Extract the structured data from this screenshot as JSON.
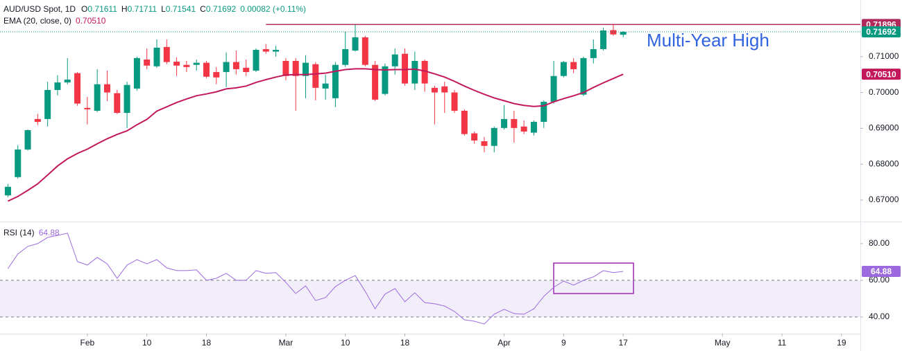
{
  "chart_data": [
    {
      "type": "candlestick",
      "title": "AUD/USD Spot, 1D",
      "ohlc_names": [
        "O",
        "H",
        "L",
        "C"
      ],
      "change": "0.00082 (+0.11%)",
      "xlim": [
        -0.8,
        85.9
      ],
      "xticks": [
        {
          "value": 8,
          "label": "Feb"
        },
        {
          "value": 14,
          "label": "10"
        },
        {
          "value": 20,
          "label": "18"
        },
        {
          "value": 28,
          "label": "Mar"
        },
        {
          "value": 34,
          "label": "10"
        },
        {
          "value": 40,
          "label": "18"
        },
        {
          "value": 50,
          "label": "Apr"
        },
        {
          "value": 56,
          "label": "9"
        },
        {
          "value": 62,
          "label": "17"
        },
        {
          "value": 72,
          "label": "May"
        },
        {
          "value": 78,
          "label": "11"
        },
        {
          "value": 84,
          "label": "19"
        }
      ],
      "ylim": [
        0.664,
        0.7258
      ],
      "yticks": [
        {
          "value": 0.67,
          "label": "0.67000"
        },
        {
          "value": 0.68,
          "label": "0.68000"
        },
        {
          "value": 0.69,
          "label": "0.69000"
        },
        {
          "value": 0.7,
          "label": "0.70000"
        },
        {
          "value": 0.71,
          "label": "0.71000"
        }
      ],
      "up_color": "#089981",
      "down_color": "#f23645",
      "open": [
        0.6713,
        0.6764,
        0.6841,
        0.6926,
        0.6926,
        0.7007,
        0.7028,
        0.7054,
        0.6957,
        0.6949,
        0.7023,
        0.6998,
        0.6943,
        0.7011,
        0.7092,
        0.7073,
        0.7127,
        0.7086,
        0.7077,
        0.7077,
        0.7083,
        0.7057,
        0.7057,
        0.7085,
        0.7069,
        0.7061,
        0.7121,
        0.7114,
        0.7088,
        0.7088,
        0.7046,
        0.7079,
        0.7011,
        0.6984,
        0.7077,
        0.7117,
        0.7154,
        0.7077,
        0.6996,
        0.7073,
        0.7108,
        0.7025,
        0.7088,
        0.7013,
        0.7017,
        0.7,
        0.6949,
        0.6886,
        0.6864,
        0.6851,
        0.6901,
        0.6926,
        0.6905,
        0.6888,
        0.6918,
        0.6974,
        0.7046,
        0.7085,
        0.6994,
        0.7096,
        0.7121,
        0.7174,
        0.71611
      ],
      "high": [
        0.6745,
        0.6853,
        0.6897,
        0.694,
        0.703,
        0.7048,
        0.7096,
        0.7057,
        0.6988,
        0.7065,
        0.7061,
        0.7007,
        0.703,
        0.71,
        0.7123,
        0.7148,
        0.7148,
        0.7098,
        0.7088,
        0.7092,
        0.7088,
        0.7071,
        0.7112,
        0.7117,
        0.7092,
        0.7123,
        0.7135,
        0.713,
        0.7096,
        0.7096,
        0.7104,
        0.7085,
        0.705,
        0.7085,
        0.717,
        0.7189,
        0.7158,
        0.7088,
        0.7081,
        0.7123,
        0.7123,
        0.7114,
        0.7092,
        0.7019,
        0.703,
        0.7007,
        0.6953,
        0.6891,
        0.6876,
        0.6905,
        0.6965,
        0.6949,
        0.6922,
        0.6922,
        0.6978,
        0.7088,
        0.7088,
        0.7096,
        0.71,
        0.7148,
        0.7181,
        0.71896,
        0.71711
      ],
      "low": [
        0.6708,
        0.676,
        0.6838,
        0.6909,
        0.6905,
        0.6992,
        0.7023,
        0.6963,
        0.6911,
        0.6945,
        0.6976,
        0.694,
        0.6901,
        0.7005,
        0.7065,
        0.7069,
        0.7079,
        0.7046,
        0.7057,
        0.7061,
        0.704,
        0.7023,
        0.7015,
        0.705,
        0.7046,
        0.7057,
        0.7108,
        0.71,
        0.7034,
        0.6949,
        0.6984,
        0.6978,
        0.698,
        0.6959,
        0.7071,
        0.7114,
        0.7073,
        0.6976,
        0.6992,
        0.705,
        0.7019,
        0.7007,
        0.7002,
        0.6911,
        0.6943,
        0.6943,
        0.688,
        0.6857,
        0.6833,
        0.6833,
        0.6897,
        0.686,
        0.6884,
        0.688,
        0.6901,
        0.6969,
        0.7042,
        0.7054,
        0.699,
        0.7081,
        0.7117,
        0.7158,
        0.71541
      ],
      "close": [
        0.6737,
        0.6841,
        0.6895,
        0.6918,
        0.7007,
        0.7028,
        0.7036,
        0.6969,
        0.6953,
        0.7023,
        0.7,
        0.6943,
        0.7021,
        0.7096,
        0.7075,
        0.7125,
        0.7085,
        0.7075,
        0.7071,
        0.7083,
        0.7044,
        0.7042,
        0.7085,
        0.7065,
        0.7057,
        0.7119,
        0.7114,
        0.7119,
        0.7046,
        0.7046,
        0.7083,
        0.7013,
        0.7025,
        0.7077,
        0.7121,
        0.7154,
        0.7077,
        0.698,
        0.7073,
        0.7106,
        0.7025,
        0.7088,
        0.7025,
        0.7,
        0.7,
        0.6949,
        0.6884,
        0.6866,
        0.6851,
        0.6901,
        0.6926,
        0.6901,
        0.6891,
        0.6918,
        0.6974,
        0.7046,
        0.7085,
        0.7065,
        0.7096,
        0.7121,
        0.7173,
        0.7162,
        0.71692
      ],
      "series": [
        {
          "name": "EMA (20, close, 0)",
          "color": "#c2185b",
          "last_value_label": "0.70510",
          "values": [
            0.6697,
            0.671,
            0.6727,
            0.6745,
            0.677,
            0.6795,
            0.6815,
            0.683,
            0.6842,
            0.6857,
            0.6871,
            0.6883,
            0.6893,
            0.691,
            0.6925,
            0.6948,
            0.696,
            0.6972,
            0.6982,
            0.6991,
            0.6996,
            0.7002,
            0.701,
            0.7013,
            0.7018,
            0.7028,
            0.7036,
            0.7043,
            0.7049,
            0.705,
            0.705,
            0.7052,
            0.7054,
            0.7059,
            0.7064,
            0.7066,
            0.7066,
            0.7064,
            0.7063,
            0.7064,
            0.7064,
            0.7065,
            0.706,
            0.7052,
            0.7043,
            0.7031,
            0.7018,
            0.7006,
            0.6995,
            0.6985,
            0.6977,
            0.6969,
            0.6964,
            0.6961,
            0.6963,
            0.6974,
            0.6983,
            0.6991,
            0.7,
            0.7014,
            0.7027,
            0.7039,
            0.7051
          ]
        }
      ],
      "hline": {
        "value": 0.71896,
        "start_index": 26,
        "color": "#b02a5b"
      },
      "annotation": "Multi-Year High"
    },
    {
      "type": "line",
      "ylim": [
        30.9,
        91.3
      ],
      "yticks": [
        {
          "value": 40,
          "label": "40.00"
        },
        {
          "value": 60,
          "label": "60.00"
        },
        {
          "value": 80,
          "label": "80.00"
        }
      ],
      "band": [
        40,
        60
      ],
      "series": [
        {
          "name": "RSI (14)",
          "color": "#9c6ade",
          "values": [
            66.4,
            74.3,
            78.5,
            80,
            83.4,
            84.5,
            85.7,
            70.2,
            68.3,
            72.5,
            69,
            61.1,
            68.3,
            71.3,
            69,
            71.3,
            66.8,
            65.3,
            65.3,
            65.7,
            60,
            61.1,
            63.8,
            60,
            60,
            65.3,
            63.8,
            64.2,
            58.9,
            52.8,
            57,
            49,
            50.6,
            56.6,
            60,
            62.6,
            54,
            44.5,
            52.5,
            55.5,
            48.3,
            53.2,
            47.9,
            47.2,
            46,
            43,
            38.5,
            37.7,
            36.2,
            41.5,
            44.2,
            41.9,
            41.5,
            44.5,
            51.3,
            56.2,
            59.6,
            57.4,
            60,
            61.9,
            65.3,
            64.2,
            64.88
          ]
        }
      ]
    }
  ]
}
